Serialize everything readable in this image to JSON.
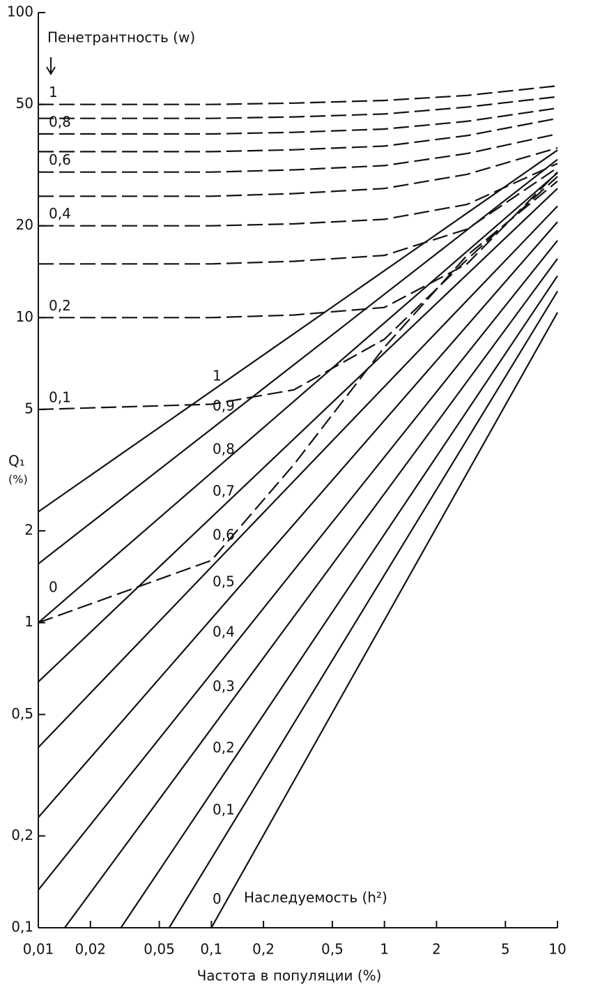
{
  "chart_data": {
    "type": "line",
    "annotation_penetrance": "Пенетрантность (w)",
    "annotation_heritability": "Наследуемость (h²)",
    "y_label": "Q₁",
    "y_unit": "(%)",
    "x_label": "Частота в популяции  (%)",
    "log_x": true,
    "log_y": true,
    "xlim": [
      0.01,
      10
    ],
    "ylim": [
      0.1,
      100
    ],
    "xticks": [
      {
        "value": 0.01,
        "label": "0,01"
      },
      {
        "value": 0.02,
        "label": "0,02"
      },
      {
        "value": 0.05,
        "label": "0,05"
      },
      {
        "value": 0.1,
        "label": "0,1"
      },
      {
        "value": 0.2,
        "label": "0,2"
      },
      {
        "value": 0.5,
        "label": "0,5"
      },
      1,
      2,
      5,
      10
    ],
    "yticks": [
      {
        "value": 0.1,
        "label": "0,1"
      },
      {
        "value": 0.2,
        "label": "0,2"
      },
      {
        "value": 0.5,
        "label": "0,5"
      },
      1,
      2,
      5,
      10,
      20,
      50,
      100
    ],
    "series": [
      {
        "name": "1",
        "group": "heritability",
        "color": "#111",
        "x": [
          0.01,
          10
        ],
        "values": [
          2.31,
          35.4
        ]
      },
      {
        "name": "0,9",
        "group": "heritability",
        "color": "#111",
        "x": [
          0.01,
          10
        ],
        "values": [
          1.56,
          33
        ]
      },
      {
        "name": "0,8",
        "group": "heritability",
        "color": "#111",
        "x": [
          0.01,
          10
        ],
        "values": [
          1.0,
          29.8
        ]
      },
      {
        "name": "0,7",
        "group": "heritability",
        "color": "#111",
        "x": [
          0.01,
          10
        ],
        "values": [
          0.64,
          26.5
        ]
      },
      {
        "name": "0,6",
        "group": "heritability",
        "color": "#111",
        "x": [
          0.01,
          10
        ],
        "values": [
          0.39,
          23.2
        ]
      },
      {
        "name": "0,5",
        "group": "heritability",
        "color": "#111",
        "x": [
          0.01,
          10
        ],
        "values": [
          0.23,
          20.6
        ]
      },
      {
        "name": "0,4",
        "group": "heritability",
        "color": "#111",
        "x": [
          0.01,
          10
        ],
        "values": [
          0.133,
          17.9
        ]
      },
      {
        "name": "0,3",
        "group": "heritability",
        "color": "#111",
        "x": [
          0.0142,
          10
        ],
        "values": [
          0.1,
          15.6
        ]
      },
      {
        "name": "0,2",
        "group": "heritability",
        "color": "#111",
        "x": [
          0.03,
          10
        ],
        "values": [
          0.1,
          13.7
        ]
      },
      {
        "name": "0,1",
        "group": "heritability",
        "color": "#111",
        "x": [
          0.057,
          10
        ],
        "values": [
          0.1,
          12.2
        ]
      },
      {
        "name": "0",
        "group": "heritability",
        "color": "#111",
        "x": [
          0.1,
          10
        ],
        "values": [
          0.1,
          10.4
        ]
      },
      {
        "name": "1",
        "group": "penetrance",
        "color": "#111",
        "x": [
          0.01,
          0.1,
          0.3,
          1,
          3,
          10
        ],
        "values": [
          50,
          50,
          50.5,
          51.5,
          53.5,
          57.5
        ]
      },
      {
        "group": "penetrance",
        "color": "#111",
        "x": [
          0.01,
          0.1,
          0.3,
          1,
          3,
          10
        ],
        "values": [
          45,
          45,
          45.5,
          46.5,
          49,
          53
        ]
      },
      {
        "name": "0,8",
        "group": "penetrance",
        "color": "#111",
        "x": [
          0.01,
          0.1,
          0.3,
          1,
          3,
          10
        ],
        "values": [
          40,
          40,
          40.5,
          41.5,
          44,
          48.6
        ]
      },
      {
        "group": "penetrance",
        "color": "#111",
        "x": [
          0.01,
          0.1,
          0.3,
          1,
          3,
          10
        ],
        "values": [
          35,
          35,
          35.5,
          36.5,
          39.5,
          45
        ]
      },
      {
        "name": "0,6",
        "group": "penetrance",
        "color": "#111",
        "x": [
          0.01,
          0.1,
          0.3,
          1,
          3,
          10
        ],
        "values": [
          30,
          30,
          30.5,
          31.5,
          34.5,
          40
        ]
      },
      {
        "group": "penetrance",
        "color": "#111",
        "x": [
          0.01,
          0.1,
          0.3,
          1,
          3,
          10
        ],
        "values": [
          25,
          25,
          25.5,
          26.5,
          29.5,
          36
        ]
      },
      {
        "name": "0,4",
        "group": "penetrance",
        "color": "#111",
        "x": [
          0.01,
          0.1,
          0.3,
          1,
          3,
          10
        ],
        "values": [
          20,
          20,
          20.3,
          21,
          23.5,
          32
        ]
      },
      {
        "group": "penetrance",
        "color": "#111",
        "x": [
          0.01,
          0.1,
          0.3,
          1,
          3,
          10
        ],
        "values": [
          15,
          15,
          15.3,
          16,
          19.5,
          31
        ]
      },
      {
        "name": "0,2",
        "group": "penetrance",
        "color": "#111",
        "x": [
          0.01,
          0.1,
          0.3,
          1,
          3,
          10
        ],
        "values": [
          10,
          10,
          10.2,
          10.8,
          15,
          30
        ]
      },
      {
        "name": "0,1",
        "group": "penetrance",
        "color": "#111",
        "x": [
          0.01,
          0.1,
          0.3,
          1,
          3,
          10
        ],
        "values": [
          5,
          5.2,
          5.8,
          8.5,
          15.5,
          29
        ]
      },
      {
        "name": "0",
        "group": "penetrance",
        "color": "#111",
        "x": [
          0.01,
          0.1,
          0.3,
          1,
          3,
          10
        ],
        "values": [
          1,
          1.6,
          3.3,
          8,
          16,
          28
        ]
      }
    ]
  }
}
